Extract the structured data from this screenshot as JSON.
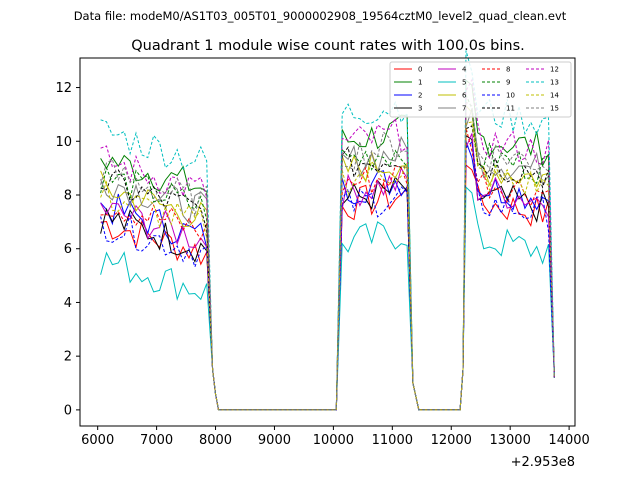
{
  "figure": {
    "suptitle": "Data file: modeM0/AS1T03_005T01_9000002908_19564cztM0_level2_quad_clean.evt"
  },
  "chart_data": {
    "type": "line",
    "title": "Quadrant 1 module wise count rates with 100.0s bins.",
    "xlabel": "",
    "ylabel": "",
    "x_offset_text": "+2.953e8",
    "xlim": [
      5700,
      14100
    ],
    "ylim": [
      -0.6,
      13.1
    ],
    "xticks": [
      6000,
      7000,
      8000,
      9000,
      10000,
      11000,
      12000,
      13000,
      14000
    ],
    "xtick_labels": [
      "6000",
      "7000",
      "8000",
      "9000",
      "10000",
      "11000",
      "12000",
      "13000",
      "14000"
    ],
    "yticks": [
      0,
      2,
      4,
      6,
      8,
      10,
      12
    ],
    "ytick_labels": [
      "0",
      "2",
      "4",
      "6",
      "8",
      "10",
      "12"
    ],
    "grid": false,
    "legend_position": "top-right",
    "series": [
      {
        "name": "0",
        "color": "#ff0000",
        "dash": "solid",
        "level": 7.0
      },
      {
        "name": "1",
        "color": "#008000",
        "dash": "solid",
        "level": 9.4
      },
      {
        "name": "2",
        "color": "#0000ff",
        "dash": "solid",
        "level": 7.6
      },
      {
        "name": "3",
        "color": "#000000",
        "dash": "solid",
        "level": 7.2
      },
      {
        "name": "4",
        "color": "#bf00bf",
        "dash": "solid",
        "level": 7.5
      },
      {
        "name": "5",
        "color": "#00bfbf",
        "dash": "solid",
        "level": 5.6
      },
      {
        "name": "6",
        "color": "#bfbf00",
        "dash": "solid",
        "level": 8.3
      },
      {
        "name": "7",
        "color": "#808080",
        "dash": "solid",
        "level": 8.6
      },
      {
        "name": "8",
        "color": "#ff0000",
        "dash": "dashed",
        "level": 7.8
      },
      {
        "name": "9",
        "color": "#008000",
        "dash": "dashed",
        "level": 8.7
      },
      {
        "name": "10",
        "color": "#0000ff",
        "dash": "dashed",
        "level": 7.0
      },
      {
        "name": "11",
        "color": "#000000",
        "dash": "dashed",
        "level": 8.5
      },
      {
        "name": "12",
        "color": "#bf00bf",
        "dash": "dashed",
        "level": 9.3
      },
      {
        "name": "13",
        "color": "#00bfbf",
        "dash": "dashed",
        "level": 10.4
      },
      {
        "name": "14",
        "color": "#bfbf00",
        "dash": "dashed",
        "level": 8.0
      },
      {
        "name": "15",
        "color": "#808080",
        "dash": "dashed",
        "level": 8.9
      }
    ],
    "segments": [
      {
        "x_start": 6050,
        "x_end": 7850
      },
      {
        "x_start": 10150,
        "x_end": 11250
      },
      {
        "x_start": 12250,
        "x_end": 13650
      }
    ],
    "rise_points": [
      {
        "x": 10050,
        "value": 0
      },
      {
        "x": 12150,
        "value": 0
      },
      {
        "x": 12200,
        "value": 1.5
      }
    ],
    "fall_points": [
      {
        "x": 7950,
        "value": 1.5
      },
      {
        "x": 8000,
        "value": 0.6
      },
      {
        "x": 8050,
        "value": 0
      },
      {
        "x": 11350,
        "value": 1.0
      },
      {
        "x": 11450,
        "value": 0
      },
      {
        "x": 13750,
        "value": 1.2
      }
    ],
    "zero_span": [
      8050,
      10050,
      11450,
      12150
    ]
  }
}
